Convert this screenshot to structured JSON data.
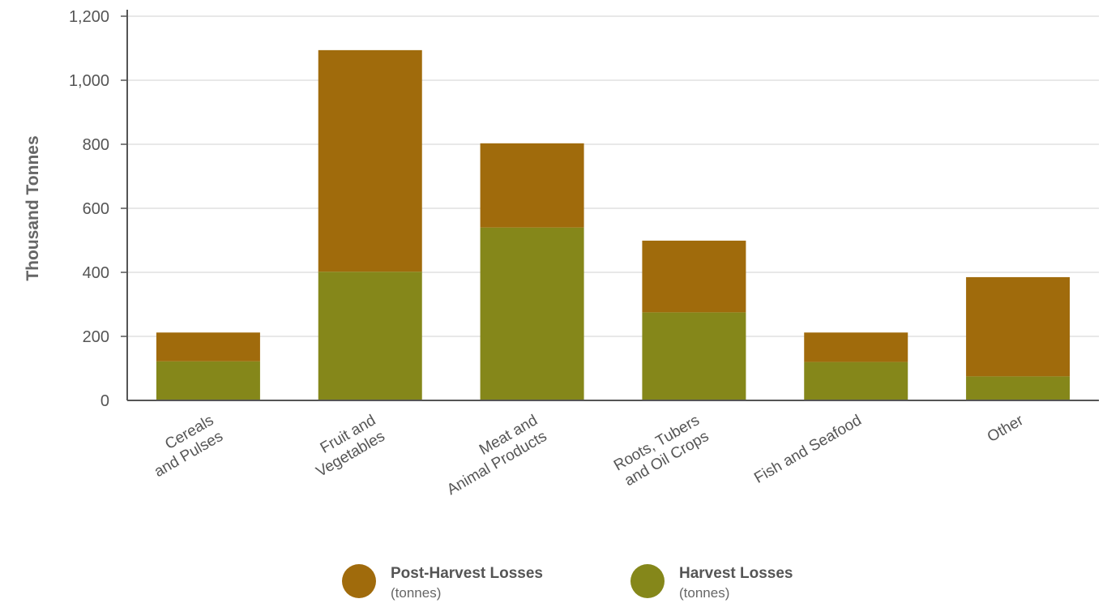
{
  "chart_data": {
    "type": "bar",
    "stacked": true,
    "ylabel": "Thousand Tonnes",
    "ylim": [
      0,
      1200
    ],
    "yticks": [
      0,
      200,
      400,
      600,
      800,
      1000,
      1200
    ],
    "ytick_labels": [
      "0",
      "200",
      "400",
      "600",
      "800",
      "1,000",
      "1,200"
    ],
    "grid": true,
    "legend_position": "bottom",
    "categories": [
      [
        "Cereals",
        "and Pulses"
      ],
      [
        "Fruit and",
        "Vegetables"
      ],
      [
        "Meat and",
        "Animal Products"
      ],
      [
        "Roots, Tubers",
        "and Oil Crops"
      ],
      [
        "Fish and Seafood"
      ],
      [
        "Other"
      ]
    ],
    "series": [
      {
        "name": "Harvest Losses",
        "unit": "(tonnes)",
        "color": "#85871a",
        "values": [
          122,
          402,
          540,
          275,
          120,
          75
        ]
      },
      {
        "name": "Post-Harvest Losses",
        "unit": "(tonnes)",
        "color": "#a06b0c",
        "values": [
          90,
          692,
          263,
          224,
          92,
          310
        ]
      }
    ]
  },
  "legend": [
    {
      "name": "Post-Harvest Losses",
      "sub": "(tonnes)",
      "color": "#a06b0c"
    },
    {
      "name": "Harvest Losses",
      "sub": "(tonnes)",
      "color": "#85871a"
    }
  ]
}
